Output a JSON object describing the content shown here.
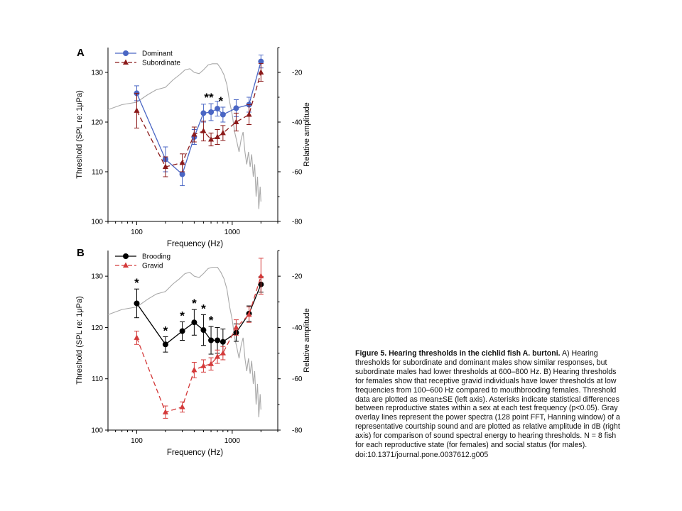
{
  "chart_data": [
    {
      "panel_label": "A",
      "type": "line",
      "xlabel": "Frequency (Hz)",
      "ylabel": "Threshold (SPL re: 1μPa)",
      "y2label": "Relative amplitude",
      "xscale": "log",
      "xlim": [
        50,
        3000
      ],
      "ylim": [
        100,
        135
      ],
      "y2lim": [
        -80,
        -10
      ],
      "xticks": [
        100,
        1000
      ],
      "yticks": [
        100,
        110,
        120,
        130
      ],
      "y2ticks": [
        -80,
        -60,
        -40,
        -20
      ],
      "legend_position": "top-left",
      "series": [
        {
          "name": "Dominant",
          "color": "#4a66c4",
          "marker": "circle",
          "line": "solid",
          "x": [
            100,
            200,
            300,
            400,
            500,
            600,
            700,
            800,
            1100,
            1500,
            2000
          ],
          "y": [
            125.8,
            112.5,
            109.5,
            117.0,
            121.8,
            122.0,
            122.7,
            121.5,
            122.8,
            123.5,
            132.2
          ],
          "err": [
            1.5,
            2.5,
            2.3,
            1.5,
            1.8,
            1.7,
            1.5,
            1.5,
            1.7,
            1.5,
            1.3
          ]
        },
        {
          "name": "Subordinate",
          "color": "#8b1a1a",
          "marker": "triangle",
          "line": "dashed",
          "x": [
            100,
            200,
            300,
            400,
            500,
            600,
            700,
            800,
            1100,
            1500,
            2000
          ],
          "y": [
            122.3,
            111.0,
            111.8,
            117.5,
            118.2,
            116.5,
            117.0,
            117.8,
            120.0,
            121.5,
            130.0
          ],
          "err": [
            3.5,
            2.0,
            1.8,
            1.5,
            2.0,
            1.3,
            1.5,
            1.5,
            1.8,
            2.0,
            1.8
          ]
        }
      ],
      "overlay": {
        "color": "#a8a8a8",
        "x": [
          50,
          70,
          100,
          130,
          160,
          200,
          240,
          280,
          320,
          360,
          400,
          450,
          500,
          560,
          620,
          700,
          760,
          820,
          880,
          940,
          1000,
          1060,
          1120,
          1180,
          1240,
          1300,
          1360,
          1420,
          1480,
          1540,
          1600,
          1660,
          1720,
          1780,
          1840,
          1900,
          1960,
          2000
        ],
        "y": [
          -35,
          -33,
          -32,
          -29,
          -27,
          -26,
          -23,
          -21,
          -19,
          -18.5,
          -20,
          -20.5,
          -19,
          -17,
          -16.5,
          -16.5,
          -18.5,
          -21,
          -25,
          -32,
          -37,
          -44,
          -48,
          -52,
          -47,
          -44,
          -52,
          -57,
          -52,
          -58,
          -53,
          -62,
          -57,
          -70,
          -62,
          -75,
          -66,
          -72
        ]
      },
      "annotations": [
        "**",
        "*"
      ]
    },
    {
      "panel_label": "B",
      "type": "line",
      "xlabel": "Frequency (Hz)",
      "ylabel": "Threshold (SPL re: 1μPa)",
      "y2label": "Relative amplitude",
      "xscale": "log",
      "xlim": [
        50,
        3000
      ],
      "ylim": [
        100,
        135
      ],
      "y2lim": [
        -80,
        -10
      ],
      "xticks": [
        100,
        1000
      ],
      "yticks": [
        100,
        110,
        120,
        130
      ],
      "y2ticks": [
        -80,
        -60,
        -40,
        -20
      ],
      "legend_position": "top-left",
      "series": [
        {
          "name": "Brooding",
          "color": "#000000",
          "marker": "circle",
          "line": "solid",
          "x": [
            100,
            200,
            300,
            400,
            500,
            600,
            700,
            800,
            1100,
            1500,
            2000
          ],
          "y": [
            124.7,
            116.7,
            119.3,
            121.0,
            119.5,
            117.5,
            117.5,
            117.2,
            119.0,
            122.7,
            128.4
          ],
          "err": [
            2.8,
            1.5,
            1.8,
            2.5,
            3.0,
            2.7,
            2.5,
            2.5,
            1.7,
            1.5,
            1.5
          ]
        },
        {
          "name": "Gravid",
          "color": "#d43a3a",
          "marker": "triangle",
          "line": "dashed",
          "x": [
            100,
            200,
            300,
            400,
            500,
            600,
            700,
            800,
            1100,
            1500,
            2000
          ],
          "y": [
            118.0,
            103.5,
            104.5,
            111.7,
            112.5,
            112.9,
            114.3,
            115.0,
            120.0,
            122.5,
            130.0
          ],
          "err": [
            1.3,
            1.2,
            1.0,
            1.5,
            1.2,
            1.2,
            1.3,
            1.3,
            1.5,
            1.5,
            3.5
          ]
        }
      ],
      "overlay": {
        "color": "#a8a8a8",
        "x": [
          50,
          70,
          100,
          130,
          160,
          200,
          240,
          280,
          320,
          360,
          400,
          450,
          500,
          560,
          620,
          700,
          760,
          820,
          880,
          940,
          1000,
          1060,
          1120,
          1180,
          1240,
          1300,
          1360,
          1420,
          1480,
          1540,
          1600,
          1660,
          1720,
          1780,
          1840,
          1900,
          1960,
          2000
        ],
        "y": [
          -35,
          -33,
          -32,
          -29,
          -27,
          -26,
          -23,
          -21,
          -19,
          -18.5,
          -20,
          -20.5,
          -19,
          -17,
          -16.5,
          -16.5,
          -18.5,
          -21,
          -25,
          -32,
          -37,
          -44,
          -48,
          -52,
          -47,
          -44,
          -52,
          -57,
          -52,
          -58,
          -53,
          -62,
          -57,
          -70,
          -62,
          -75,
          -66,
          -72
        ]
      },
      "annotations": [
        "*",
        "*",
        "*",
        "*",
        "*",
        "*"
      ]
    }
  ],
  "caption": {
    "title": "Figure 5. Hearing thresholds in the cichlid fish A. burtoni.",
    "body": "A) Hearing thresholds for subordinate and dominant males show similar responses, but subordinate males had lower thresholds at 600–800 Hz. B) Hearing thresholds for females show that receptive gravid individuals have lower thresholds at low frequencies from 100–600 Hz compared to mouthbrooding females. Threshold data are plotted as mean±SE (left axis). Asterisks indicate statistical differences between reproductive states within a sex at each test frequency (p<0.05). Gray overlay lines represent the power spectra (128 point FFT, Hanning window) of a representative courtship sound and are plotted as relative amplitude in dB (right axis) for comparison of sound spectral energy to hearing thresholds. N = 8 fish for each reproductive state (for females) and social status (for males).",
    "doi": "doi:10.1371/journal.pone.0037612.g005"
  }
}
